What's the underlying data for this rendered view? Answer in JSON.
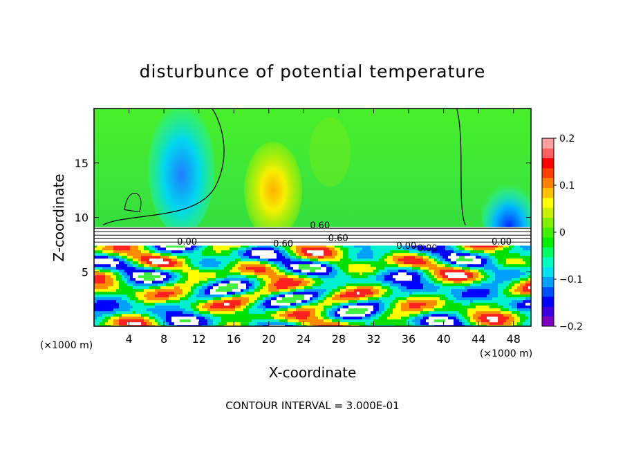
{
  "chart_data": {
    "type": "heatmap",
    "title": "disturbunce of potential temperature",
    "xlabel": "X-coordinate",
    "ylabel": "Z-coordinate",
    "x_unit_label": "(×1000 m)",
    "y_unit_label": "(×1000 m)",
    "x_ticks": [
      "4",
      "8",
      "12",
      "16",
      "20",
      "24",
      "28",
      "32",
      "36",
      "40",
      "44",
      "48"
    ],
    "x_tick_values": [
      4,
      8,
      12,
      16,
      20,
      24,
      28,
      32,
      36,
      40,
      44,
      48
    ],
    "y_ticks": [
      "5",
      "10",
      "15"
    ],
    "y_tick_values": [
      5,
      10,
      15
    ],
    "xlim": [
      0,
      50
    ],
    "ylim": [
      0,
      20
    ],
    "colorbar": {
      "ticks": [
        "0.2",
        "0.1",
        "0",
        "−0.1",
        "−0.2"
      ],
      "tick_values": [
        0.2,
        0.1,
        0,
        -0.1,
        -0.2
      ],
      "range": [
        -0.2,
        0.2
      ],
      "colors": [
        "#7f00bf",
        "#3f00df",
        "#0000ff",
        "#0050ff",
        "#00a0ff",
        "#00e0f0",
        "#00ffc0",
        "#00ff60",
        "#00ee00",
        "#40f000",
        "#80f000",
        "#c8f000",
        "#ffff00",
        "#ffc000",
        "#ff8000",
        "#ff4000",
        "#ff0000",
        "#ff6060",
        "#ffa0a0"
      ]
    },
    "contour_labels": [
      "0.60",
      "0.60",
      "0.00",
      "0.00",
      "0.00",
      "0.60",
      "0.00"
    ],
    "contour_interval_text": "CONTOUR INTERVAL = 3.000E-01",
    "field_regions": [
      {
        "x": [
          0,
          50
        ],
        "z": [
          9,
          20
        ],
        "value": 0.0
      },
      {
        "x": [
          7,
          13
        ],
        "z": [
          10,
          19
        ],
        "value": -0.08
      },
      {
        "x": [
          17,
          22
        ],
        "z": [
          10,
          15
        ],
        "value": 0.07
      },
      {
        "x": [
          44,
          50
        ],
        "z": [
          9,
          13
        ],
        "value": -0.12
      },
      {
        "x": [
          0,
          50
        ],
        "z": [
          0,
          9
        ],
        "value": "mixed"
      }
    ]
  }
}
